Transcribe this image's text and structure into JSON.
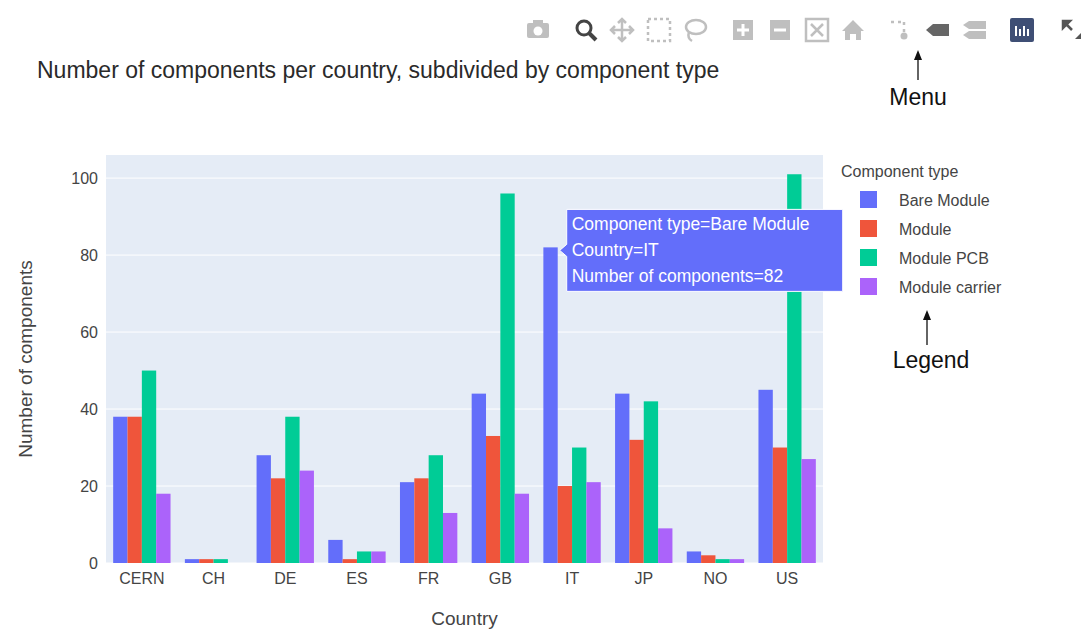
{
  "chart_data": {
    "type": "bar",
    "title": "Number of components per country, subdivided by component type",
    "x_label": "Country",
    "y_label": "Number of components",
    "legend_title": "Component type",
    "categories": [
      "CERN",
      "CH",
      "DE",
      "ES",
      "FR",
      "GB",
      "IT",
      "JP",
      "NO",
      "US"
    ],
    "series": [
      {
        "name": "Bare Module",
        "color": "#636efa",
        "values": [
          38,
          1,
          28,
          6,
          21,
          44,
          82,
          44,
          3,
          45
        ]
      },
      {
        "name": "Module",
        "color": "#ef553b",
        "values": [
          38,
          1,
          22,
          1,
          22,
          33,
          20,
          32,
          2,
          30
        ]
      },
      {
        "name": "Module PCB",
        "color": "#00cc96",
        "values": [
          50,
          1,
          38,
          3,
          28,
          96,
          30,
          42,
          1,
          101
        ]
      },
      {
        "name": "Module carrier",
        "color": "#ab63fa",
        "values": [
          18,
          0,
          24,
          3,
          13,
          18,
          21,
          9,
          1,
          27
        ]
      }
    ],
    "ylim": [
      0,
      106
    ],
    "yticks": [
      0,
      20,
      40,
      60,
      80,
      100
    ],
    "grid": true,
    "legend": "right",
    "tooltip": [
      "Component type=Bare Module",
      "Country=IT",
      "Number of components=82"
    ],
    "annotations": [
      "Menu",
      "Legend"
    ]
  }
}
